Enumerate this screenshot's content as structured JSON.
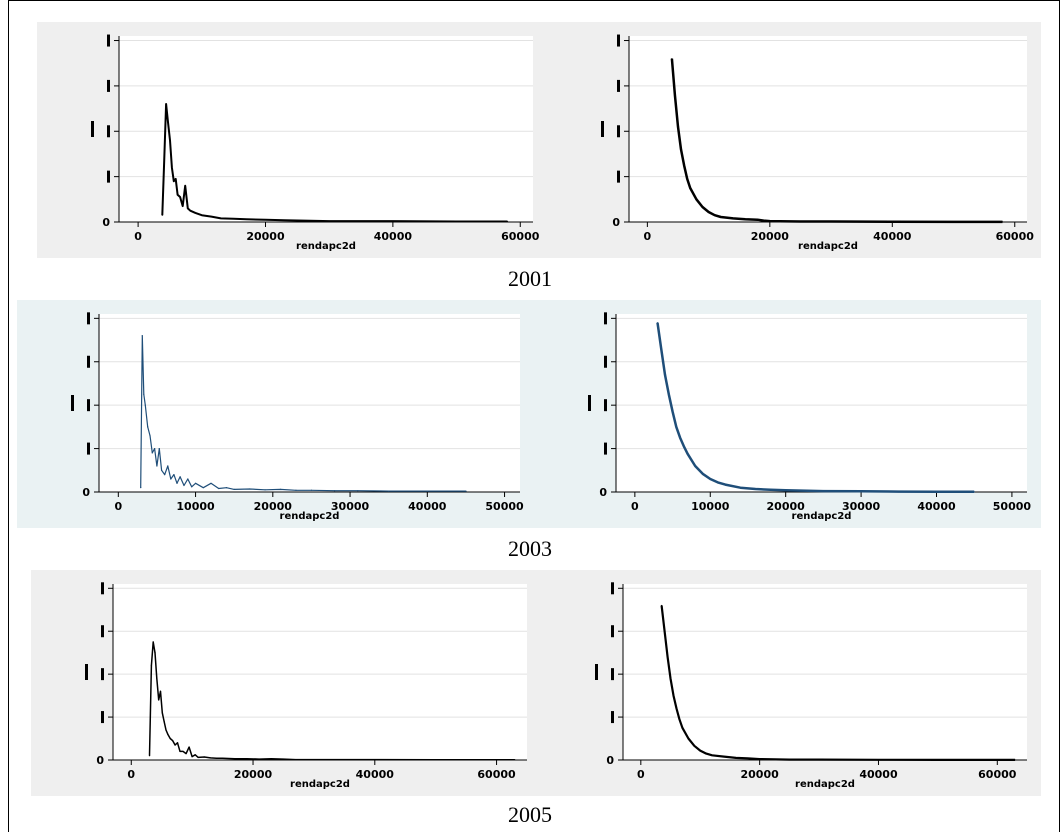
{
  "years": [
    "2001",
    "2003",
    "2005"
  ],
  "row_bg": [
    "#efefef",
    "#eaf2f3",
    "#efefef"
  ],
  "chart_data": [
    {
      "type": "line",
      "row": 0,
      "col": 0,
      "xlabel": "rendapc2d",
      "ylabel": "",
      "xticks": [
        0,
        20000,
        40000,
        60000
      ],
      "xticks_label": [
        "0",
        "20000",
        "40000",
        "60000"
      ],
      "yticks": [
        0,
        1,
        2,
        3,
        4
      ],
      "yticks_label": [
        "0",
        "",
        "",
        "",
        ""
      ],
      "xlim": [
        -3000,
        62000
      ],
      "ylim": [
        0,
        4.1
      ],
      "grid": true,
      "color": "#000000",
      "stroke": 2,
      "x": [
        3800,
        4100,
        4400,
        4700,
        5000,
        5300,
        5600,
        5900,
        6200,
        6600,
        7000,
        7400,
        7800,
        8200,
        9000,
        10000,
        11500,
        13000,
        15000,
        17000,
        20000,
        23000,
        26000,
        30000,
        40000,
        50000,
        58000
      ],
      "y": [
        0.15,
        1.35,
        2.6,
        2.2,
        1.8,
        1.2,
        0.9,
        0.95,
        0.6,
        0.55,
        0.35,
        0.8,
        0.3,
        0.25,
        0.2,
        0.15,
        0.12,
        0.08,
        0.07,
        0.06,
        0.05,
        0.04,
        0.03,
        0.02,
        0.02,
        0.01,
        0.01
      ]
    },
    {
      "type": "line",
      "row": 0,
      "col": 1,
      "xlabel": "rendapc2d",
      "ylabel": "",
      "xticks": [
        0,
        20000,
        40000,
        60000
      ],
      "xticks_label": [
        "0",
        "20000",
        "40000",
        "60000"
      ],
      "yticks": [
        0,
        1,
        2,
        3,
        4
      ],
      "yticks_label": [
        "0",
        "",
        "",
        "",
        ""
      ],
      "xlim": [
        -3000,
        62000
      ],
      "ylim": [
        0,
        4.1
      ],
      "grid": true,
      "color": "#000000",
      "stroke": 2.5,
      "x": [
        4000,
        4500,
        5000,
        5500,
        6000,
        6500,
        7000,
        8000,
        9000,
        10000,
        11000,
        12000,
        14000,
        16000,
        18000,
        19000,
        20000,
        25000,
        30000,
        40000,
        50000,
        58000
      ],
      "y": [
        3.6,
        2.8,
        2.1,
        1.6,
        1.25,
        0.95,
        0.75,
        0.5,
        0.33,
        0.22,
        0.15,
        0.11,
        0.08,
        0.06,
        0.05,
        0.03,
        0.02,
        0.01,
        0.01,
        0.005,
        0.003,
        0.002
      ]
    },
    {
      "type": "line",
      "row": 1,
      "col": 0,
      "xlabel": "rendapc2d",
      "ylabel": "",
      "xticks": [
        0,
        10000,
        20000,
        30000,
        40000,
        50000
      ],
      "xticks_label": [
        "0",
        "10000",
        "20000",
        "30000",
        "40000",
        "50000"
      ],
      "yticks": [
        0,
        1,
        2,
        3,
        4
      ],
      "yticks_label": [
        "0",
        "",
        "",
        "",
        ""
      ],
      "xlim": [
        -2500,
        52000
      ],
      "ylim": [
        0,
        4.1
      ],
      "grid": true,
      "color": "#1f4e79",
      "stroke": 1.2,
      "x": [
        2900,
        3100,
        3300,
        3500,
        3800,
        4100,
        4400,
        4700,
        5000,
        5300,
        5600,
        6000,
        6400,
        6800,
        7200,
        7600,
        8000,
        8500,
        9000,
        9500,
        10000,
        11000,
        12000,
        13000,
        14000,
        15000,
        17000,
        19000,
        21000,
        23000,
        25000,
        28000,
        31000,
        35000,
        40000,
        45000
      ],
      "y": [
        0.1,
        3.6,
        2.25,
        2.0,
        1.5,
        1.3,
        0.9,
        1.0,
        0.6,
        1.0,
        0.5,
        0.4,
        0.6,
        0.3,
        0.4,
        0.2,
        0.35,
        0.15,
        0.3,
        0.12,
        0.2,
        0.1,
        0.2,
        0.08,
        0.1,
        0.06,
        0.07,
        0.05,
        0.06,
        0.04,
        0.04,
        0.03,
        0.03,
        0.02,
        0.02,
        0.02
      ]
    },
    {
      "type": "line",
      "row": 1,
      "col": 1,
      "xlabel": "rendapc2d",
      "ylabel": "",
      "xticks": [
        0,
        10000,
        20000,
        30000,
        40000,
        50000
      ],
      "xticks_label": [
        "0",
        "10000",
        "20000",
        "30000",
        "40000",
        "50000"
      ],
      "yticks": [
        0,
        1,
        2,
        3,
        4
      ],
      "yticks_label": [
        "0",
        "",
        "",
        "",
        ""
      ],
      "xlim": [
        -2500,
        52000
      ],
      "ylim": [
        0,
        4.1
      ],
      "grid": true,
      "color": "#1f4e79",
      "stroke": 2.5,
      "x": [
        3000,
        3500,
        4000,
        4500,
        5000,
        5500,
        6000,
        6500,
        7000,
        8000,
        9000,
        10000,
        11000,
        12000,
        14000,
        16000,
        18000,
        20000,
        25000,
        30000,
        35000,
        40000,
        45000
      ],
      "y": [
        3.9,
        3.3,
        2.7,
        2.25,
        1.85,
        1.5,
        1.25,
        1.05,
        0.88,
        0.6,
        0.42,
        0.3,
        0.22,
        0.17,
        0.1,
        0.07,
        0.05,
        0.04,
        0.02,
        0.015,
        0.01,
        0.008,
        0.006
      ]
    },
    {
      "type": "line",
      "row": 2,
      "col": 0,
      "xlabel": "rendapc2d",
      "ylabel": "",
      "xticks": [
        0,
        20000,
        40000,
        60000
      ],
      "xticks_label": [
        "0",
        "20000",
        "40000",
        "60000"
      ],
      "yticks": [
        0,
        1,
        2,
        3,
        4
      ],
      "yticks_label": [
        "0",
        "",
        "",
        "",
        ""
      ],
      "xlim": [
        -3000,
        65000
      ],
      "ylim": [
        0,
        4.1
      ],
      "grid": true,
      "color": "#000000",
      "stroke": 1.5,
      "x": [
        3000,
        3300,
        3600,
        3900,
        4200,
        4500,
        4800,
        5100,
        5400,
        5700,
        6000,
        6400,
        6800,
        7200,
        7600,
        8000,
        8500,
        9000,
        9500,
        10000,
        10500,
        11000,
        12000,
        13000,
        14000,
        15000,
        17000,
        19000,
        21000,
        23000,
        25000,
        27000,
        30000,
        40000,
        50000,
        63000
      ],
      "y": [
        0.1,
        2.2,
        2.75,
        2.5,
        1.9,
        1.4,
        1.6,
        1.1,
        0.9,
        0.7,
        0.6,
        0.5,
        0.45,
        0.35,
        0.4,
        0.2,
        0.2,
        0.15,
        0.3,
        0.08,
        0.12,
        0.06,
        0.07,
        0.05,
        0.04,
        0.04,
        0.03,
        0.03,
        0.02,
        0.03,
        0.02,
        0.01,
        0.01,
        0.01,
        0.005,
        0.005
      ]
    },
    {
      "type": "line",
      "row": 2,
      "col": 1,
      "xlabel": "rendapc2d",
      "ylabel": "",
      "xticks": [
        0,
        20000,
        40000,
        60000
      ],
      "xticks_label": [
        "0",
        "20000",
        "40000",
        "60000"
      ],
      "yticks": [
        0,
        1,
        2,
        3,
        4
      ],
      "yticks_label": [
        "0",
        "",
        "",
        "",
        ""
      ],
      "xlim": [
        -3000,
        65000
      ],
      "ylim": [
        0,
        4.1
      ],
      "grid": true,
      "color": "#000000",
      "stroke": 2.2,
      "x": [
        3500,
        4000,
        4500,
        5000,
        5500,
        6000,
        6500,
        7000,
        8000,
        9000,
        10000,
        11000,
        12000,
        14000,
        16000,
        18000,
        20000,
        25000,
        30000,
        40000,
        50000,
        63000
      ],
      "y": [
        3.6,
        3.0,
        2.4,
        1.9,
        1.5,
        1.2,
        0.95,
        0.75,
        0.5,
        0.33,
        0.22,
        0.15,
        0.11,
        0.08,
        0.05,
        0.04,
        0.02,
        0.01,
        0.01,
        0.005,
        0.003,
        0.002
      ]
    }
  ]
}
